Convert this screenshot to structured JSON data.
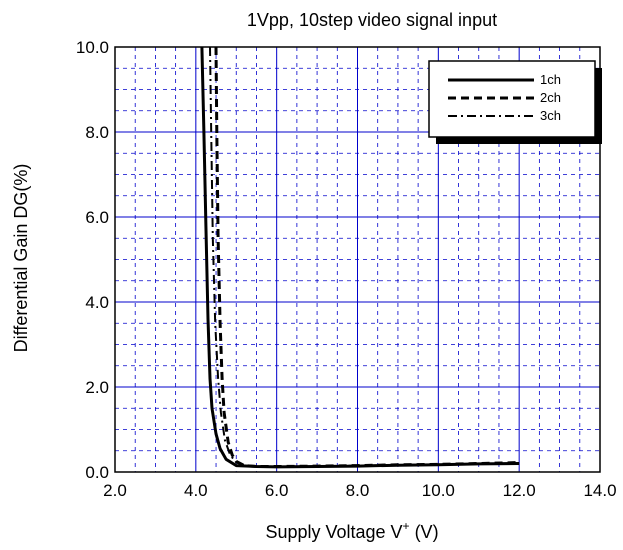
{
  "chart_data": {
    "type": "line",
    "title": "",
    "subtitle": "1Vpp, 10step video signal input",
    "xlabel": "Supply Voltage  V+ (V)",
    "xlabel_parts": {
      "main": "Supply Voltage  V",
      "sup": "+",
      "tail": " (V)"
    },
    "ylabel": "Differential Gain  DG(%)",
    "xlim": [
      2.0,
      14.0
    ],
    "ylim": [
      0.0,
      10.0
    ],
    "xticks": [
      "2.0",
      "4.0",
      "6.0",
      "8.0",
      "10.0",
      "12.0",
      "14.0"
    ],
    "yticks": [
      "0.0",
      "2.0",
      "4.0",
      "6.0",
      "8.0",
      "10.0"
    ],
    "grid": true,
    "legend_position": "top-right",
    "colors": {
      "grid_major": "#0000cc",
      "grid_minor": "#0000cc",
      "series": "#000000"
    },
    "series": [
      {
        "name": "1ch",
        "style": "solid",
        "x": [
          4.15,
          4.2,
          4.25,
          4.3,
          4.35,
          4.4,
          4.5,
          4.6,
          4.75,
          5.0,
          5.5,
          6.0,
          7.0,
          8.0,
          9.0,
          10.0,
          11.0,
          12.0
        ],
        "y": [
          10.0,
          8.0,
          5.8,
          3.6,
          2.2,
          1.5,
          0.9,
          0.55,
          0.3,
          0.15,
          0.13,
          0.12,
          0.13,
          0.14,
          0.16,
          0.17,
          0.19,
          0.2
        ]
      },
      {
        "name": "2ch",
        "style": "dashed",
        "x": [
          4.5,
          4.52,
          4.55,
          4.6,
          4.65,
          4.7,
          4.8,
          4.9,
          5.0,
          5.2,
          5.5,
          6.0,
          7.0,
          8.0,
          9.0,
          10.0,
          11.0,
          12.0
        ],
        "y": [
          10.0,
          8.0,
          5.5,
          3.5,
          2.2,
          1.4,
          0.7,
          0.4,
          0.25,
          0.15,
          0.13,
          0.13,
          0.14,
          0.15,
          0.17,
          0.18,
          0.2,
          0.22
        ]
      },
      {
        "name": "3ch",
        "style": "dashdot",
        "x": [
          4.35,
          4.38,
          4.42,
          4.48,
          4.55,
          4.62,
          4.72,
          4.85,
          5.0,
          5.3,
          5.6,
          6.0,
          7.0,
          8.0,
          9.0,
          10.0,
          11.0,
          12.0
        ],
        "y": [
          10.0,
          8.0,
          5.5,
          3.5,
          2.2,
          1.4,
          0.75,
          0.4,
          0.22,
          0.14,
          0.12,
          0.12,
          0.13,
          0.15,
          0.16,
          0.18,
          0.19,
          0.21
        ]
      }
    ]
  }
}
